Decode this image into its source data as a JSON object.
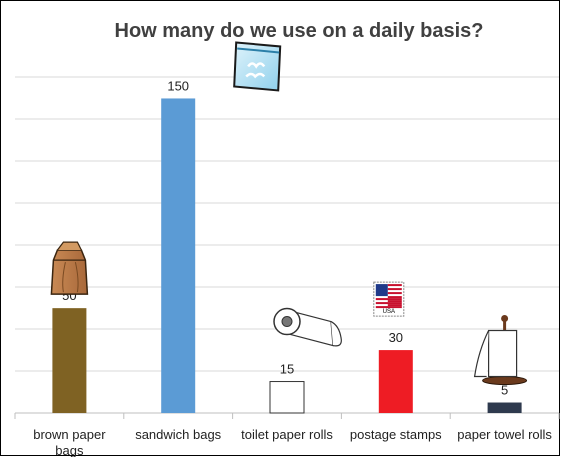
{
  "chart_data": {
    "type": "bar",
    "title": "How many do we use on a daily basis?",
    "categories": [
      "brown paper bags",
      "sandwich bags",
      "toilet paper rolls",
      "postage stamps",
      "paper towel rolls"
    ],
    "category_lines": [
      [
        "brown paper",
        "bags"
      ],
      [
        "sandwich bags"
      ],
      [
        "toilet paper rolls"
      ],
      [
        "postage stamps"
      ],
      [
        "paper towel rolls"
      ]
    ],
    "values": [
      50,
      150,
      15,
      30,
      5
    ],
    "colors": [
      "#7f6223",
      "#5b9bd5",
      "#ffffff",
      "#ee1c24",
      "#2e3a4e"
    ],
    "icons": [
      "paper-bag-icon",
      "sandwich-bag-icon",
      "toilet-paper-icon",
      "postage-stamp-icon",
      "paper-towel-icon"
    ],
    "stamp_text": "USA",
    "ylim": [
      0,
      165
    ],
    "grid": true,
    "xlabel": "",
    "ylabel": ""
  }
}
